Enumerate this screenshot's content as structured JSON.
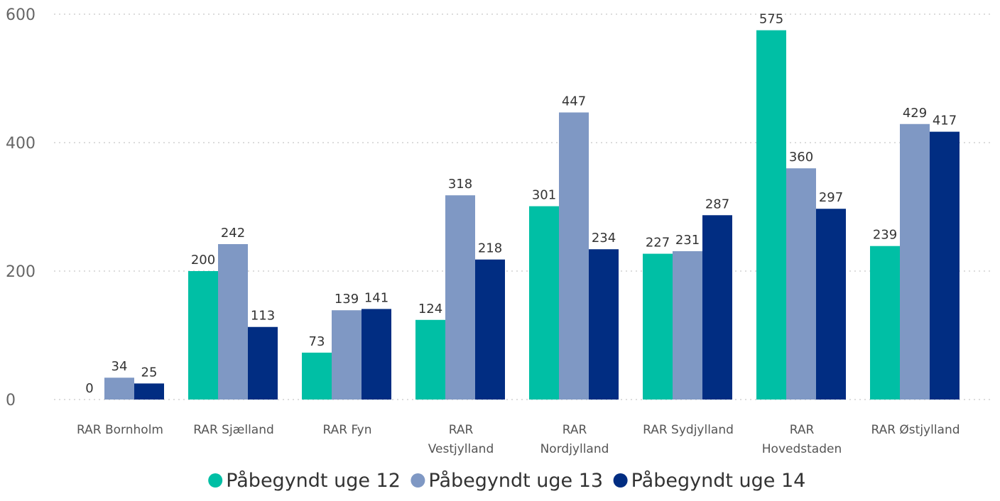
{
  "chart_data": {
    "type": "bar",
    "title": "",
    "xlabel": "",
    "ylabel": "",
    "ylim": [
      0,
      600
    ],
    "y_ticks": [
      0,
      200,
      400,
      600
    ],
    "grid": true,
    "legend_position": "bottom",
    "categories": [
      [
        "RAR Bornholm"
      ],
      [
        "RAR Sjælland"
      ],
      [
        "RAR Fyn"
      ],
      [
        "RAR",
        "Vestjylland"
      ],
      [
        "RAR",
        "Nordjylland"
      ],
      [
        "RAR Sydjylland"
      ],
      [
        "RAR",
        "Hovedstaden"
      ],
      [
        "RAR Østjylland"
      ]
    ],
    "series": [
      {
        "name": "Påbegyndt uge 12",
        "color": "#00BFA5",
        "values": [
          0,
          200,
          73,
          124,
          301,
          227,
          575,
          239
        ]
      },
      {
        "name": "Påbegyndt uge 13",
        "color": "#7F98C4",
        "values": [
          34,
          242,
          139,
          318,
          447,
          231,
          360,
          429
        ]
      },
      {
        "name": "Påbegyndt uge 14",
        "color": "#012D82",
        "values": [
          25,
          113,
          141,
          218,
          234,
          287,
          297,
          417
        ]
      }
    ]
  }
}
